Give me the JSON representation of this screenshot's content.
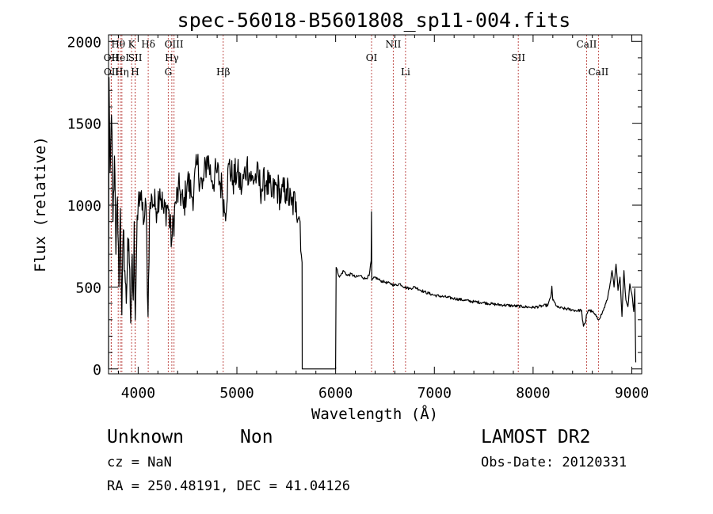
{
  "chart_data": {
    "type": "line",
    "title": "spec-56018-B5601808_sp11-004.fits",
    "xlabel": "Wavelength (Å)",
    "ylabel": "Flux (relative)",
    "xlim": [
      3700,
      9100
    ],
    "ylim": [
      -30,
      2040
    ],
    "x_ticks": [
      4000,
      5000,
      6000,
      7000,
      8000,
      9000
    ],
    "y_ticks": [
      0,
      500,
      1000,
      1500,
      2000
    ],
    "grid": false,
    "line_color": "#000000",
    "marker_color": "#c0504d",
    "spectrum_anchors": [
      [
        3700,
        0
      ],
      [
        3705,
        1780
      ],
      [
        3715,
        1200
      ],
      [
        3730,
        1550
      ],
      [
        3745,
        900
      ],
      [
        3760,
        1300
      ],
      [
        3775,
        700
      ],
      [
        3790,
        1050
      ],
      [
        3805,
        500
      ],
      [
        3820,
        980
      ],
      [
        3835,
        330
      ],
      [
        3850,
        850
      ],
      [
        3865,
        600
      ],
      [
        3880,
        400
      ],
      [
        3895,
        800
      ],
      [
        3910,
        650
      ],
      [
        3925,
        280
      ],
      [
        3940,
        700
      ],
      [
        3950,
        420
      ],
      [
        3960,
        900
      ],
      [
        3970,
        300
      ],
      [
        3985,
        750
      ],
      [
        4000,
        1000
      ],
      [
        4020,
        1080
      ],
      [
        4040,
        970
      ],
      [
        4060,
        900
      ],
      [
        4080,
        1000
      ],
      [
        4100,
        320
      ],
      [
        4115,
        950
      ],
      [
        4140,
        1050
      ],
      [
        4180,
        980
      ],
      [
        4220,
        1100
      ],
      [
        4260,
        950
      ],
      [
        4300,
        1000
      ],
      [
        4340,
        780
      ],
      [
        4380,
        1020
      ],
      [
        4420,
        1100
      ],
      [
        4460,
        980
      ],
      [
        4500,
        1150
      ],
      [
        4550,
        1050
      ],
      [
        4600,
        1250
      ],
      [
        4650,
        1100
      ],
      [
        4700,
        1300
      ],
      [
        4750,
        1150
      ],
      [
        4800,
        1200
      ],
      [
        4850,
        1100
      ],
      [
        4880,
        950
      ],
      [
        4920,
        1250
      ],
      [
        4960,
        1150
      ],
      [
        5000,
        1200
      ],
      [
        5050,
        1100
      ],
      [
        5100,
        1250
      ],
      [
        5150,
        1150
      ],
      [
        5200,
        1180
      ],
      [
        5250,
        1100
      ],
      [
        5300,
        1150
      ],
      [
        5350,
        1050
      ],
      [
        5400,
        1120
      ],
      [
        5450,
        1050
      ],
      [
        5500,
        1100
      ],
      [
        5550,
        1000
      ],
      [
        5600,
        1020
      ],
      [
        5640,
        900
      ],
      [
        5660,
        650
      ],
      [
        5662,
        0
      ],
      [
        6000,
        0
      ],
      [
        6005,
        620
      ],
      [
        6040,
        560
      ],
      [
        6080,
        600
      ],
      [
        6120,
        570
      ],
      [
        6160,
        580
      ],
      [
        6200,
        560
      ],
      [
        6250,
        570
      ],
      [
        6300,
        550
      ],
      [
        6340,
        570
      ],
      [
        6360,
        660
      ],
      [
        6363,
        960
      ],
      [
        6366,
        540
      ],
      [
        6400,
        560
      ],
      [
        6450,
        540
      ],
      [
        6500,
        530
      ],
      [
        6560,
        520
      ],
      [
        6600,
        510
      ],
      [
        6650,
        520
      ],
      [
        6700,
        500
      ],
      [
        6750,
        490
      ],
      [
        6800,
        500
      ],
      [
        6900,
        470
      ],
      [
        7000,
        450
      ],
      [
        7100,
        440
      ],
      [
        7200,
        430
      ],
      [
        7300,
        420
      ],
      [
        7400,
        410
      ],
      [
        7500,
        405
      ],
      [
        7600,
        395
      ],
      [
        7700,
        390
      ],
      [
        7800,
        385
      ],
      [
        7900,
        380
      ],
      [
        8000,
        375
      ],
      [
        8100,
        385
      ],
      [
        8150,
        390
      ],
      [
        8180,
        440
      ],
      [
        8190,
        505
      ],
      [
        8200,
        420
      ],
      [
        8250,
        375
      ],
      [
        8300,
        370
      ],
      [
        8400,
        360
      ],
      [
        8450,
        355
      ],
      [
        8490,
        360
      ],
      [
        8500,
        300
      ],
      [
        8510,
        260
      ],
      [
        8530,
        280
      ],
      [
        8540,
        330
      ],
      [
        8560,
        360
      ],
      [
        8600,
        350
      ],
      [
        8640,
        320
      ],
      [
        8660,
        300
      ],
      [
        8700,
        340
      ],
      [
        8750,
        420
      ],
      [
        8780,
        520
      ],
      [
        8800,
        600
      ],
      [
        8820,
        500
      ],
      [
        8840,
        640
      ],
      [
        8860,
        480
      ],
      [
        8880,
        560
      ],
      [
        8900,
        320
      ],
      [
        8920,
        600
      ],
      [
        8940,
        420
      ],
      [
        8960,
        380
      ],
      [
        8980,
        520
      ],
      [
        9000,
        460
      ],
      [
        9020,
        350
      ],
      [
        9030,
        490
      ],
      [
        9040,
        40
      ]
    ],
    "spectral_lines": [
      {
        "name": "OII",
        "wavelength": 3727,
        "row": 1
      },
      {
        "name": "OII",
        "wavelength": 3729,
        "row": 2
      },
      {
        "name": "Hθ",
        "wavelength": 3798,
        "row": 0
      },
      {
        "name": "HeI",
        "wavelength": 3820,
        "row": 1
      },
      {
        "name": "Hη",
        "wavelength": 3835,
        "row": 2
      },
      {
        "name": "K",
        "wavelength": 3934,
        "row": 0
      },
      {
        "name": "SII",
        "wavelength": 3970,
        "row": 1
      },
      {
        "name": "H",
        "wavelength": 3969,
        "row": 2
      },
      {
        "name": "Hδ",
        "wavelength": 4102,
        "row": 0
      },
      {
        "name": "OIII",
        "wavelength": 4363,
        "row": 0
      },
      {
        "name": "Hγ",
        "wavelength": 4341,
        "row": 1
      },
      {
        "name": "G",
        "wavelength": 4305,
        "row": 2
      },
      {
        "name": "Hβ",
        "wavelength": 4861,
        "row": 2
      },
      {
        "name": "OI",
        "wavelength": 6364,
        "row": 1
      },
      {
        "name": "NII",
        "wavelength": 6584,
        "row": 0
      },
      {
        "name": "Li",
        "wavelength": 6708,
        "row": 2
      },
      {
        "name": "SII",
        "wavelength": 7850,
        "row": 1
      },
      {
        "name": "CaII",
        "wavelength": 8542,
        "row": 0
      },
      {
        "name": "CaII",
        "wavelength": 8662,
        "row": 2
      }
    ]
  },
  "footer": {
    "class": "Unknown",
    "subclass": "Non",
    "cz": "cz = NaN",
    "coords": "RA = 250.48191, DEC =  41.04126",
    "survey": "LAMOST DR2",
    "obs_date": "Obs-Date: 20120331"
  }
}
